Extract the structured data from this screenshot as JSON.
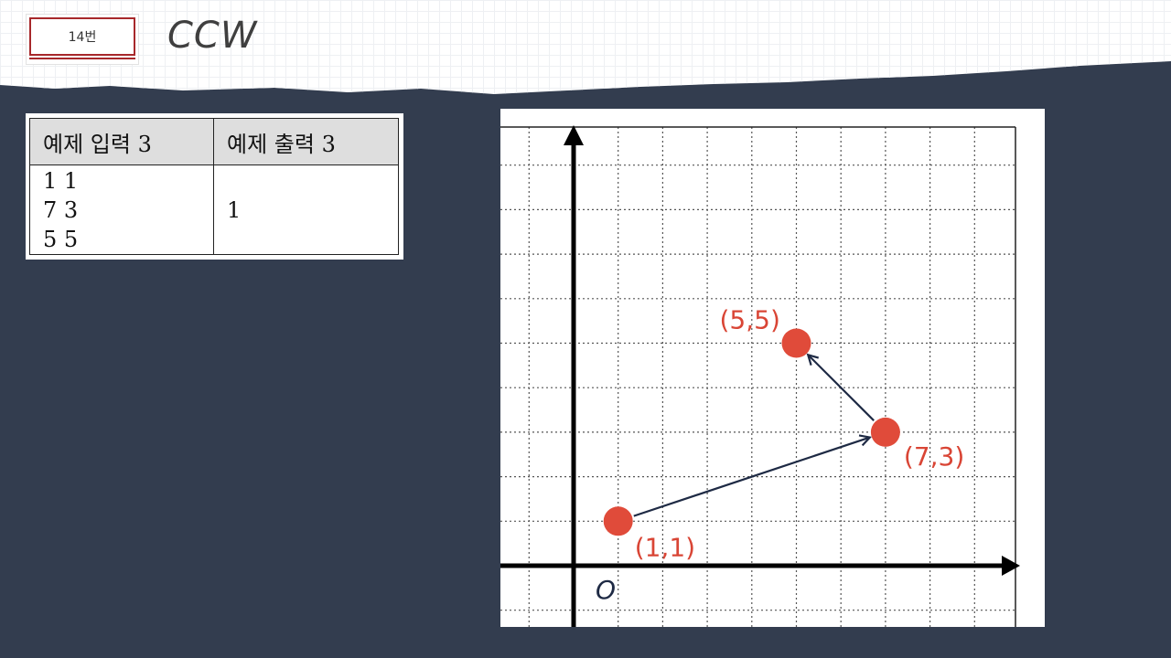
{
  "header": {
    "badge_label": "14번",
    "title": "CCW"
  },
  "example_table": {
    "input_header": "예제 입력 3",
    "output_header": "예제 출력 3",
    "input_lines": [
      "1 1",
      "7 3",
      "5 5"
    ],
    "output_value": "1"
  },
  "diagram": {
    "origin_label": "O",
    "points": [
      {
        "label": "(1,1)",
        "x": 1,
        "y": 1
      },
      {
        "label": "(7,3)",
        "x": 7,
        "y": 3
      },
      {
        "label": "(5,5)",
        "x": 5,
        "y": 5
      }
    ],
    "point_color": "#e04b3a",
    "arrow_color": "#1e2a44",
    "grid_color": "#555555"
  }
}
